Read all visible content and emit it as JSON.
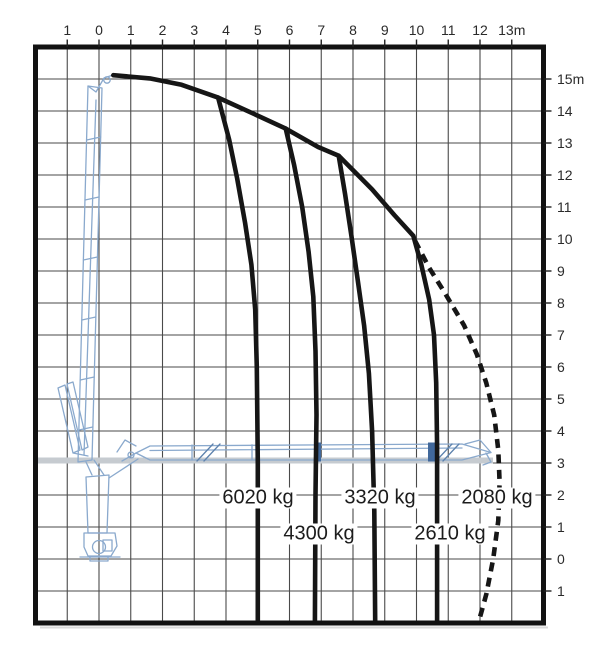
{
  "figure": {
    "kind": "crane-load-capacity-diagram",
    "unit": "m"
  },
  "axes": {
    "top": {
      "unit": "m",
      "labels": [
        "1",
        "0",
        "1",
        "2",
        "3",
        "4",
        "5",
        "6",
        "7",
        "8",
        "9",
        "10",
        "11",
        "12",
        "13m"
      ]
    },
    "right": {
      "unit": "m",
      "labels": [
        "15m",
        "14",
        "13",
        "12",
        "11",
        "10",
        "9",
        "8",
        "7",
        "6",
        "5",
        "4",
        "3",
        "2",
        "1",
        "0",
        "1"
      ]
    }
  },
  "capacity_labels": [
    {
      "text": "6020 kg"
    },
    {
      "text": "4300 kg"
    },
    {
      "text": "3320 kg"
    },
    {
      "text": "2610 kg"
    },
    {
      "text": "2080 kg"
    }
  ],
  "colors": {
    "curve": "#161616",
    "curve_dashed": "#161616",
    "grid": "#4a4a4a",
    "border": "#121212",
    "tick": "#222222",
    "crane_blue": "#8aa9cd",
    "crane_blue_dark": "#41689b",
    "crane_blue_mid": "#5d82ad",
    "boom_gray": "#c6cbd0"
  },
  "chart_data": {
    "type": "line",
    "title": "",
    "xlabel": "",
    "ylabel": "",
    "x_unit": "m",
    "y_unit": "m",
    "x_range": [
      -2,
      14
    ],
    "y_range": [
      -2,
      16
    ],
    "x_tick_labels": [
      "1",
      "0",
      "1",
      "2",
      "3",
      "4",
      "5",
      "6",
      "7",
      "8",
      "9",
      "10",
      "11",
      "12",
      "13m"
    ],
    "y_tick_labels": [
      "15m",
      "14",
      "13",
      "12",
      "11",
      "10",
      "9",
      "8",
      "7",
      "6",
      "5",
      "4",
      "3",
      "2",
      "1",
      "0",
      "1"
    ],
    "grid": true,
    "legend": false,
    "capacities": [
      {
        "label": "6020 kg",
        "kg": 6020,
        "outreach_m": 5.0
      },
      {
        "label": "4300 kg",
        "kg": 4300,
        "outreach_m": 6.8
      },
      {
        "label": "3320 kg",
        "kg": 3320,
        "outreach_m": 8.7
      },
      {
        "label": "2610 kg",
        "kg": 2610,
        "outreach_m": 10.65
      },
      {
        "label": "2080 kg",
        "kg": 2080,
        "outreach_m": 12.6
      }
    ],
    "series": [
      {
        "name": "capacity-envelope",
        "style": "solid",
        "points": [
          [
            0.45,
            15.1
          ],
          [
            1.6,
            15.0
          ],
          [
            2.6,
            14.8
          ],
          [
            3.75,
            14.4
          ],
          [
            4.9,
            13.9
          ],
          [
            5.88,
            13.45
          ],
          [
            6.9,
            12.9
          ],
          [
            7.55,
            12.6
          ],
          [
            8.6,
            11.55
          ],
          [
            9.3,
            10.75
          ],
          [
            9.9,
            10.1
          ],
          [
            10.15,
            9.2
          ],
          [
            10.4,
            8.1
          ],
          [
            10.55,
            7.0
          ],
          [
            10.62,
            5.5
          ],
          [
            10.65,
            3.5
          ],
          [
            10.65,
            -2.0
          ]
        ]
      },
      {
        "name": "6020 kg line",
        "style": "solid",
        "points": [
          [
            3.75,
            14.4
          ],
          [
            4.1,
            13.1
          ],
          [
            4.35,
            11.9
          ],
          [
            4.6,
            10.5
          ],
          [
            4.8,
            9.2
          ],
          [
            4.92,
            7.8
          ],
          [
            4.97,
            6.0
          ],
          [
            5.0,
            3.0
          ],
          [
            5.0,
            -2.0
          ]
        ]
      },
      {
        "name": "4300 kg line",
        "style": "solid",
        "points": [
          [
            5.88,
            13.45
          ],
          [
            6.15,
            12.3
          ],
          [
            6.4,
            11.0
          ],
          [
            6.6,
            9.6
          ],
          [
            6.75,
            8.2
          ],
          [
            6.82,
            6.5
          ],
          [
            6.85,
            4.5
          ],
          [
            6.82,
            2.0
          ],
          [
            6.8,
            -2.0
          ]
        ]
      },
      {
        "name": "3320 kg line",
        "style": "solid",
        "points": [
          [
            7.55,
            12.6
          ],
          [
            7.75,
            11.4
          ],
          [
            7.95,
            10.1
          ],
          [
            8.15,
            8.7
          ],
          [
            8.35,
            7.3
          ],
          [
            8.5,
            5.8
          ],
          [
            8.6,
            4.0
          ],
          [
            8.67,
            1.5
          ],
          [
            8.7,
            -2.0
          ]
        ]
      },
      {
        "name": "2080 kg boundary",
        "style": "dashed",
        "points": [
          [
            9.95,
            9.95
          ],
          [
            10.4,
            9.1
          ],
          [
            10.9,
            8.3
          ],
          [
            11.5,
            7.3
          ],
          [
            11.9,
            6.4
          ],
          [
            12.2,
            5.5
          ],
          [
            12.45,
            4.5
          ],
          [
            12.58,
            3.4
          ],
          [
            12.62,
            2.4
          ],
          [
            12.58,
            1.2
          ],
          [
            12.42,
            0.0
          ],
          [
            12.2,
            -1.1
          ],
          [
            11.95,
            -2.0
          ]
        ]
      }
    ]
  }
}
